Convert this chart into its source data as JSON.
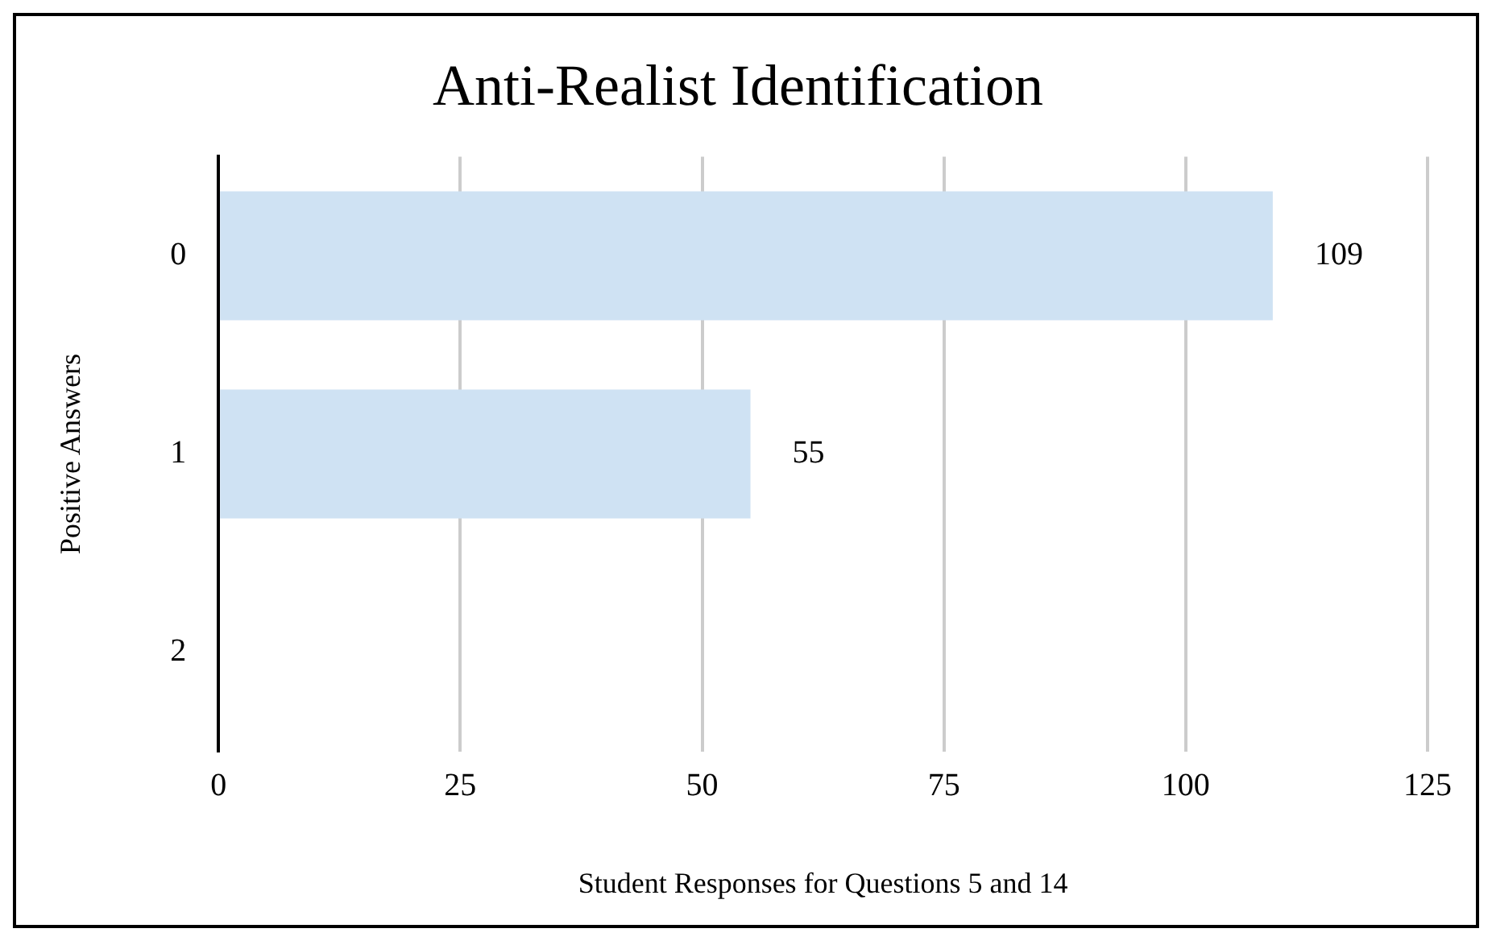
{
  "chart_data": {
    "type": "bar",
    "orientation": "horizontal",
    "title": "Anti-Realist Identification",
    "xlabel": "Student Responses for Questions 5 and 14",
    "ylabel": "Positive Answers",
    "categories": [
      "0",
      "1",
      "2"
    ],
    "series": [
      {
        "color": "#cfe2f3",
        "values": [
          109,
          55,
          0
        ],
        "value_labels": [
          "109",
          "55",
          null
        ]
      }
    ],
    "xlim": [
      0,
      125
    ],
    "xticks": [
      0,
      25,
      50,
      75,
      100,
      125
    ],
    "grid": "x",
    "legend": false
  }
}
